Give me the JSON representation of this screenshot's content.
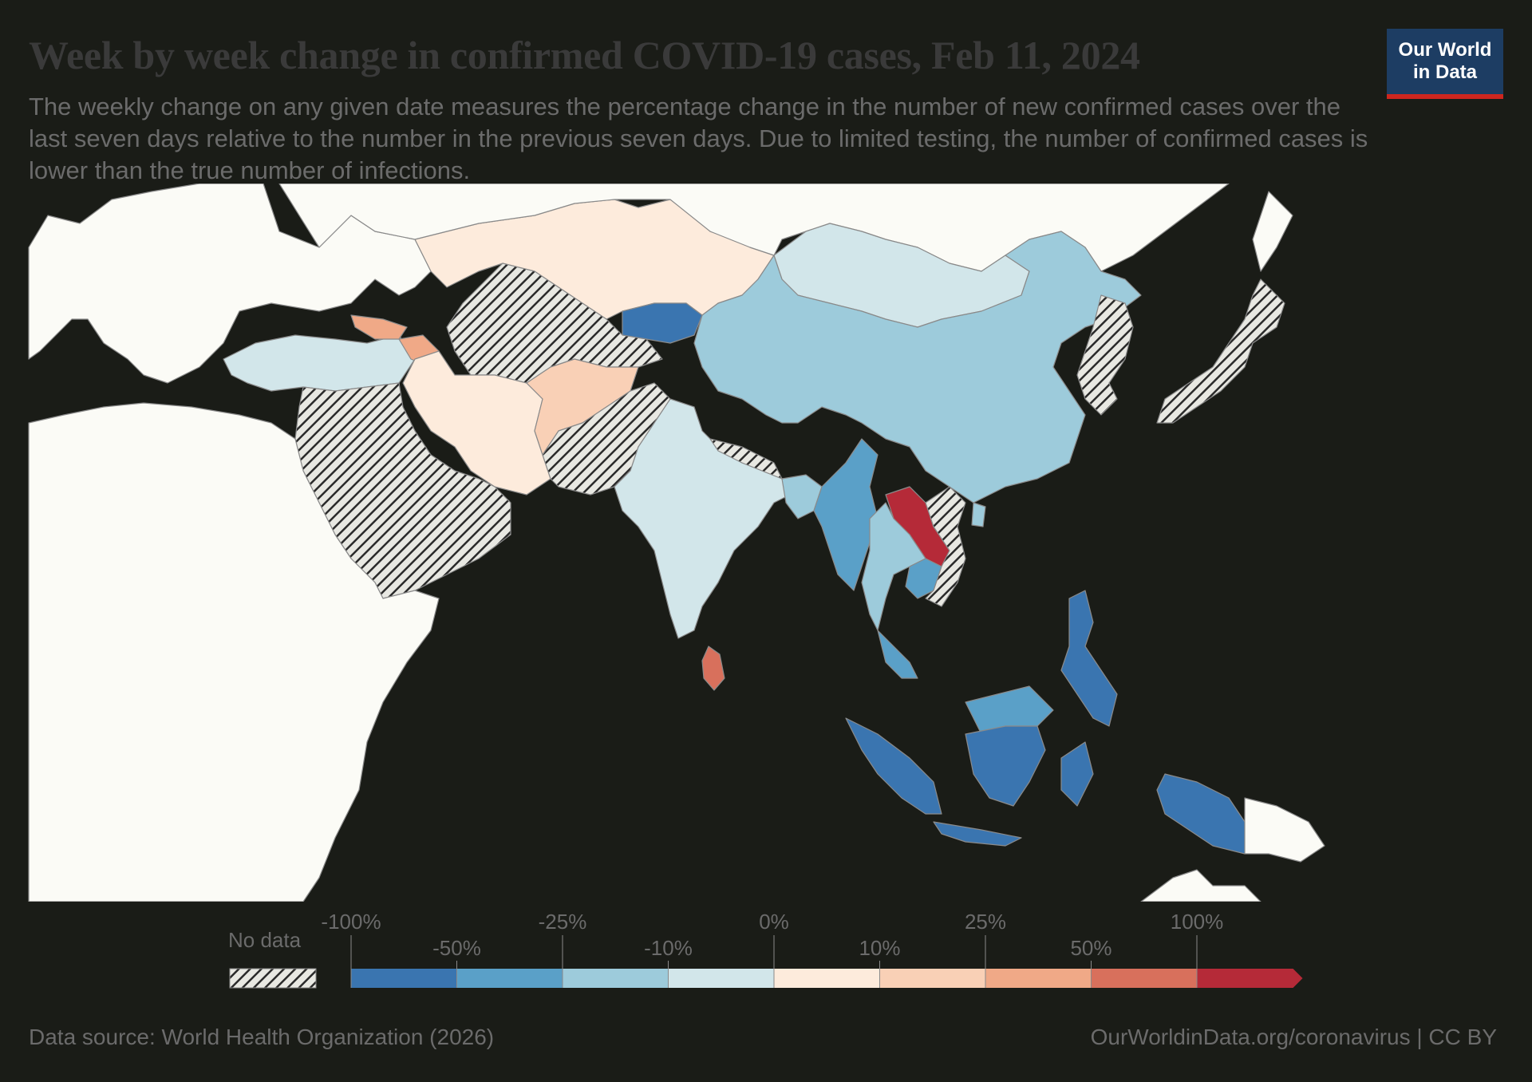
{
  "title": "Week by week change in confirmed COVID-19 cases, Feb 11, 2024",
  "subtitle": "The weekly change on any given date measures the percentage change in the number of new confirmed cases over the last seven days relative to the number in the previous seven days. Due to limited testing, the number of confirmed cases is lower than the true number of infections.",
  "logo": {
    "line1": "Our World",
    "line2": "in Data"
  },
  "legend": {
    "no_data_label": "No data",
    "bins": [
      {
        "range": "<-50%",
        "color": "#3a75b0"
      },
      {
        "range": "-50% to -25%",
        "color": "#5aa0c8"
      },
      {
        "range": "-25% to -10%",
        "color": "#9dcbdb"
      },
      {
        "range": "-10% to 0%",
        "color": "#d2e6ea"
      },
      {
        "range": "0% to 10%",
        "color": "#fdebdc"
      },
      {
        "range": "10% to 25%",
        "color": "#f9d0b6"
      },
      {
        "range": "25% to 50%",
        "color": "#f0a987"
      },
      {
        "range": "50% to 100%",
        "color": "#d8705c"
      },
      {
        "range": ">100%",
        "color": "#b52a38"
      }
    ],
    "upper_ticks": [
      "-100%",
      "-25%",
      "0%",
      "25%",
      "100%"
    ],
    "lower_ticks": [
      "-50%",
      "-10%",
      "10%",
      "50%"
    ]
  },
  "colors": {
    "background": "#1a1c17",
    "no_data_land": "#fbfbf6",
    "border": "#8a8a8a"
  },
  "regions": [
    {
      "name": "Kazakhstan",
      "color": "#fdebdc"
    },
    {
      "name": "Mongolia",
      "color": "#d2e6ea"
    },
    {
      "name": "China",
      "color": "#9dcbdb"
    },
    {
      "name": "Kyrgyzstan",
      "color": "#3a75b0"
    },
    {
      "name": "Iran",
      "color": "#fdebdc"
    },
    {
      "name": "Afghanistan",
      "color": "#f9d0b6"
    },
    {
      "name": "Turkey",
      "color": "#d2e6ea"
    },
    {
      "name": "India",
      "color": "#d2e6ea"
    },
    {
      "name": "Sri Lanka",
      "color": "#d8705c"
    },
    {
      "name": "Georgia",
      "color": "#f0a987"
    },
    {
      "name": "Armenia",
      "color": "#f0a987"
    },
    {
      "name": "Bangladesh",
      "color": "#9dcbdb"
    },
    {
      "name": "Myanmar",
      "color": "#5aa0c8"
    },
    {
      "name": "Laos",
      "color": "#b52a38"
    },
    {
      "name": "Thailand",
      "color": "#9dcbdb"
    },
    {
      "name": "Cambodia",
      "color": "#5aa0c8"
    },
    {
      "name": "Malaysia",
      "color": "#5aa0c8"
    },
    {
      "name": "Indonesia",
      "color": "#3a75b0"
    },
    {
      "name": "Philippines",
      "color": "#3a75b0"
    },
    {
      "name": "Taiwan",
      "color": "#9dcbdb"
    }
  ],
  "footer": {
    "source": "Data source: World Health Organization (2026)",
    "url": "OurWorldinData.org/coronavirus | CC BY"
  }
}
